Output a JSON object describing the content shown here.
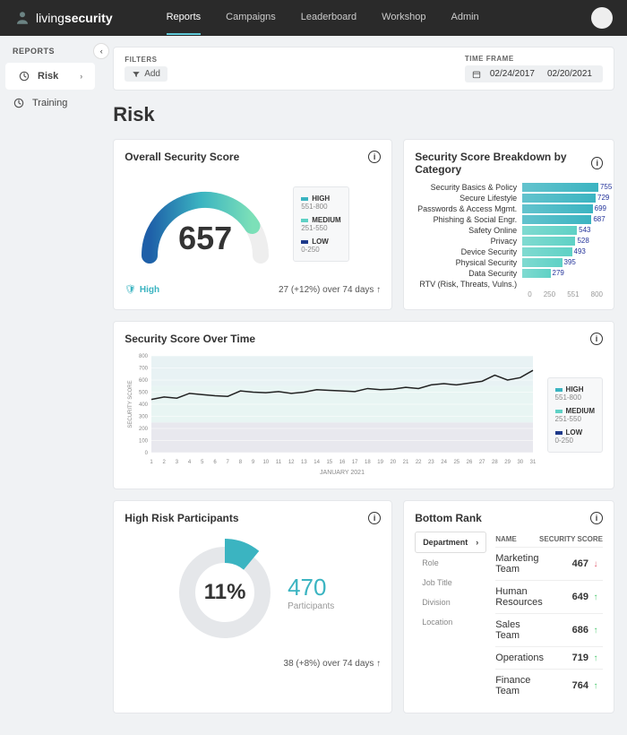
{
  "brand": {
    "name1": "living",
    "name2": "security"
  },
  "topnav": [
    "Reports",
    "Campaigns",
    "Leaderboard",
    "Workshop",
    "Admin"
  ],
  "topnav_active": 0,
  "sidebar": {
    "title": "REPORTS",
    "items": [
      {
        "label": "Risk",
        "icon": "gauge",
        "active": true
      },
      {
        "label": "Training",
        "icon": "training",
        "active": false
      }
    ]
  },
  "filters": {
    "label": "FILTERS",
    "add": "Add"
  },
  "timeframe": {
    "label": "TIME FRAME",
    "start": "02/24/2017",
    "end": "02/20/2021"
  },
  "page_title": "Risk",
  "colors": {
    "high": "#3bb4c1",
    "medium": "#5fd1c5",
    "low": "#1e3a8a",
    "grad_start": "#1e5fa8",
    "grad_mid": "#3bb4c1",
    "grad_end": "#7ce0b8"
  },
  "overall": {
    "title": "Overall Security Score",
    "score": 657,
    "max": 800,
    "level": "High",
    "change_text": "27 (+12%) over 74 days",
    "legend": [
      {
        "label": "HIGH",
        "range": "551-800",
        "color": "#3bb4c1"
      },
      {
        "label": "MEDIUM",
        "range": "251-550",
        "color": "#5fd1c5"
      },
      {
        "label": "LOW",
        "range": "0-250",
        "color": "#1e3a8a"
      }
    ]
  },
  "breakdown": {
    "title": "Security Score Breakdown by Category",
    "max": 800,
    "ticks": [
      0,
      250,
      551,
      800
    ],
    "items": [
      {
        "label": "Security Basics & Policy",
        "value": 755
      },
      {
        "label": "Secure Lifestyle",
        "value": 729
      },
      {
        "label": "Passwords & Access Mgmt.",
        "value": 699
      },
      {
        "label": "Phishing & Social Engr.",
        "value": 687
      },
      {
        "label": "Safety Online",
        "value": 543
      },
      {
        "label": "Privacy",
        "value": 528
      },
      {
        "label": "Device Security",
        "value": 493
      },
      {
        "label": "Physical Security",
        "value": 395
      },
      {
        "label": "Data Security",
        "value": 279
      },
      {
        "label": "RTV (Risk, Threats, Vulns.)",
        "value": 0
      }
    ]
  },
  "overtime": {
    "title": "Security Score Over Time",
    "ylabel": "SECURITY SCORE",
    "xlabel": "JANUARY 2021",
    "ymax": 800,
    "ytick": 100,
    "days": 31,
    "bands": [
      {
        "from": 0,
        "to": 250,
        "color": "#e8e8ee"
      },
      {
        "from": 250,
        "to": 550,
        "color": "#e8f5f3"
      },
      {
        "from": 550,
        "to": 800,
        "color": "#e8f2f4"
      }
    ],
    "values": [
      440,
      460,
      450,
      490,
      480,
      470,
      465,
      510,
      500,
      495,
      505,
      490,
      500,
      520,
      515,
      510,
      505,
      530,
      520,
      525,
      540,
      530,
      560,
      570,
      560,
      575,
      590,
      640,
      600,
      620,
      680
    ],
    "line_color": "#222",
    "legend": [
      {
        "label": "HIGH",
        "range": "551-800",
        "color": "#3bb4c1"
      },
      {
        "label": "MEDIUM",
        "range": "251-550",
        "color": "#5fd1c5"
      },
      {
        "label": "LOW",
        "range": "0-250",
        "color": "#1e3a8a"
      }
    ]
  },
  "hrp": {
    "title": "High Risk Participants",
    "pct": "11%",
    "pct_val": 0.11,
    "count": 470,
    "count_label": "Participants",
    "change_text": "38 (+8%) over 74 days",
    "ring_color": "#e5e7ea",
    "slice_color": "#3bb4c1"
  },
  "rank": {
    "title": "Bottom Rank",
    "tabs": [
      "Department",
      "Role",
      "Job Title",
      "Division",
      "Location"
    ],
    "active_tab": 0,
    "columns": [
      "NAME",
      "SECURITY SCORE"
    ],
    "rows": [
      {
        "name": "Marketing Team",
        "score": 467,
        "dir": "down"
      },
      {
        "name": "Human Resources",
        "score": 649,
        "dir": "up"
      },
      {
        "name": "Sales Team",
        "score": 686,
        "dir": "up"
      },
      {
        "name": "Operations",
        "score": 719,
        "dir": "up"
      },
      {
        "name": "Finance Team",
        "score": 764,
        "dir": "up"
      }
    ]
  }
}
